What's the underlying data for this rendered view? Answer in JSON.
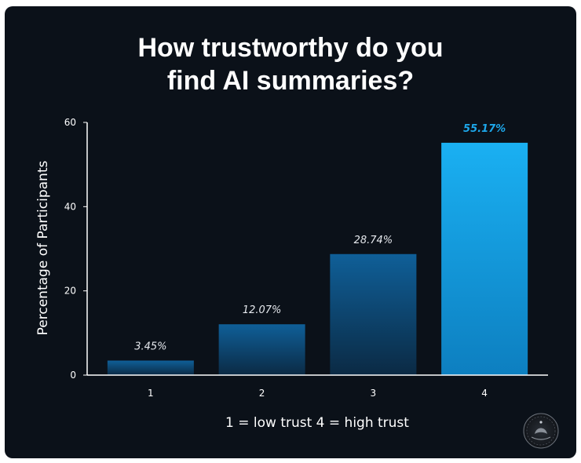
{
  "chart_data": {
    "type": "bar",
    "title": "How trustworthy do you find AI summaries?",
    "title_lines": [
      "How trustworthy do you",
      "find AI summaries?"
    ],
    "categories": [
      "1",
      "2",
      "3",
      "4"
    ],
    "values": [
      3.45,
      12.07,
      28.74,
      55.17
    ],
    "data_labels": [
      "3.45%",
      "12.07%",
      "28.74%",
      "55.17%"
    ],
    "xlabel": "1 = low trust  4 = high trust",
    "ylabel": "Percentage of Participants",
    "ylim": [
      0,
      60
    ],
    "yticks": [
      0,
      20,
      40,
      60
    ],
    "highlight_index": 3,
    "grid": false,
    "legend": "none"
  },
  "colors": {
    "background": "#0b1119",
    "bar_top": "#0f5f98",
    "bar_bottom": "#0b2a44",
    "highlight_top": "#1ab0f2",
    "highlight_bottom": "#0d7fc0",
    "highlight_label": "#1da7ea"
  },
  "logo": {
    "icon": "round-logo-icon"
  }
}
